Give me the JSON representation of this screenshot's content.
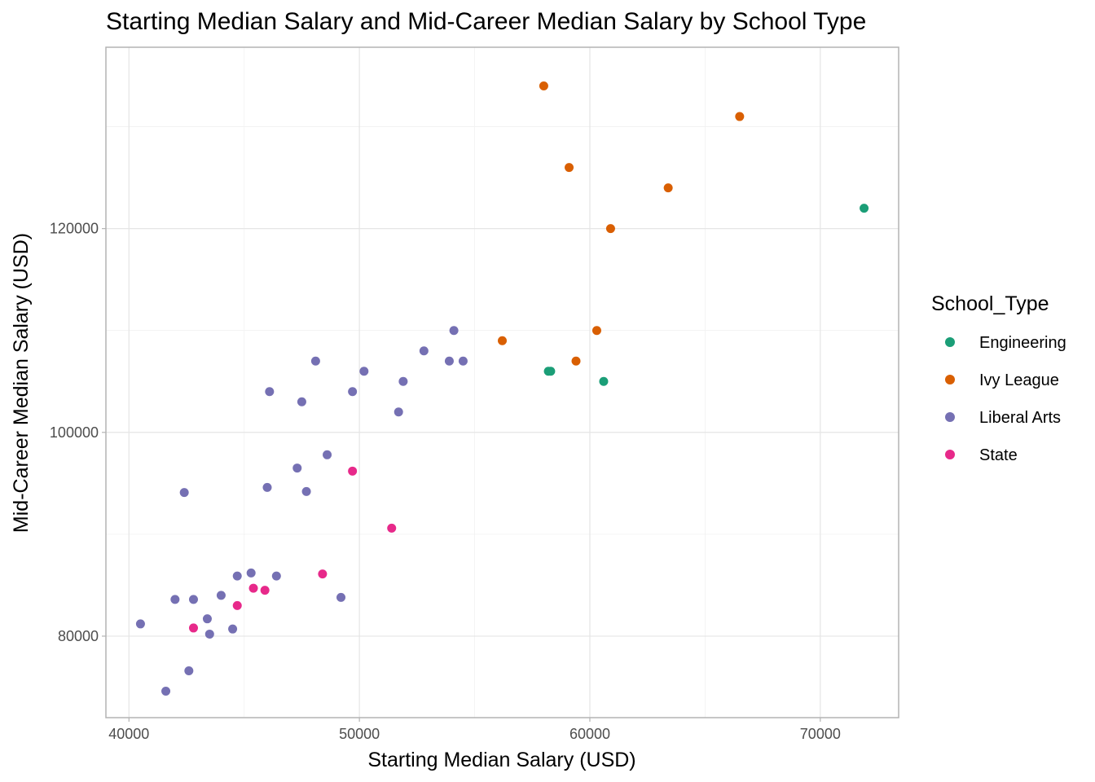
{
  "chart_data": {
    "type": "scatter",
    "title": "Starting Median Salary and Mid-Career Median Salary by School Type",
    "xlabel": "Starting Median Salary (USD)",
    "ylabel": "Mid-Career Median Salary (USD)",
    "xlim": [
      39000,
      73400
    ],
    "ylim": [
      72000,
      137800
    ],
    "xticks": [
      40000,
      50000,
      60000,
      70000
    ],
    "yticks": [
      80000,
      100000,
      120000
    ],
    "xminor": [
      45000,
      55000,
      65000
    ],
    "yminor": [
      90000,
      110000,
      130000
    ],
    "grid": true,
    "legend": {
      "title": "School_Type",
      "position": "right"
    },
    "series": [
      {
        "name": "Engineering",
        "color": "#1b9e77",
        "points": [
          [
            71900,
            122000
          ],
          [
            58200,
            106000
          ],
          [
            58300,
            106000
          ],
          [
            60600,
            105000
          ]
        ]
      },
      {
        "name": "Ivy League",
        "color": "#d95f02",
        "points": [
          [
            58000,
            134000
          ],
          [
            66500,
            131000
          ],
          [
            59100,
            126000
          ],
          [
            63400,
            124000
          ],
          [
            60900,
            120000
          ],
          [
            56200,
            109000
          ],
          [
            60300,
            110000
          ],
          [
            59400,
            107000
          ]
        ]
      },
      {
        "name": "Liberal Arts",
        "color": "#7570b3",
        "points": [
          [
            54100,
            110000
          ],
          [
            52800,
            108000
          ],
          [
            53900,
            107000
          ],
          [
            54500,
            107000
          ],
          [
            48100,
            107000
          ],
          [
            50200,
            106000
          ],
          [
            51900,
            105000
          ],
          [
            46100,
            104000
          ],
          [
            49700,
            104000
          ],
          [
            47500,
            103000
          ],
          [
            51700,
            102000
          ],
          [
            48600,
            97800
          ],
          [
            47300,
            96500
          ],
          [
            46000,
            94600
          ],
          [
            47700,
            94200
          ],
          [
            42400,
            94100
          ],
          [
            45300,
            86200
          ],
          [
            44700,
            85900
          ],
          [
            46400,
            85900
          ],
          [
            44000,
            84000
          ],
          [
            49200,
            83800
          ],
          [
            42000,
            83600
          ],
          [
            42800,
            83600
          ],
          [
            43400,
            81700
          ],
          [
            40500,
            81200
          ],
          [
            44500,
            80700
          ],
          [
            43500,
            80200
          ],
          [
            42600,
            76600
          ],
          [
            41600,
            74600
          ]
        ]
      },
      {
        "name": "State",
        "color": "#e7298a",
        "points": [
          [
            49700,
            96200
          ],
          [
            51400,
            90600
          ],
          [
            48400,
            86100
          ],
          [
            45400,
            84700
          ],
          [
            45900,
            84500
          ],
          [
            44700,
            83000
          ],
          [
            42800,
            80800
          ]
        ]
      }
    ]
  }
}
